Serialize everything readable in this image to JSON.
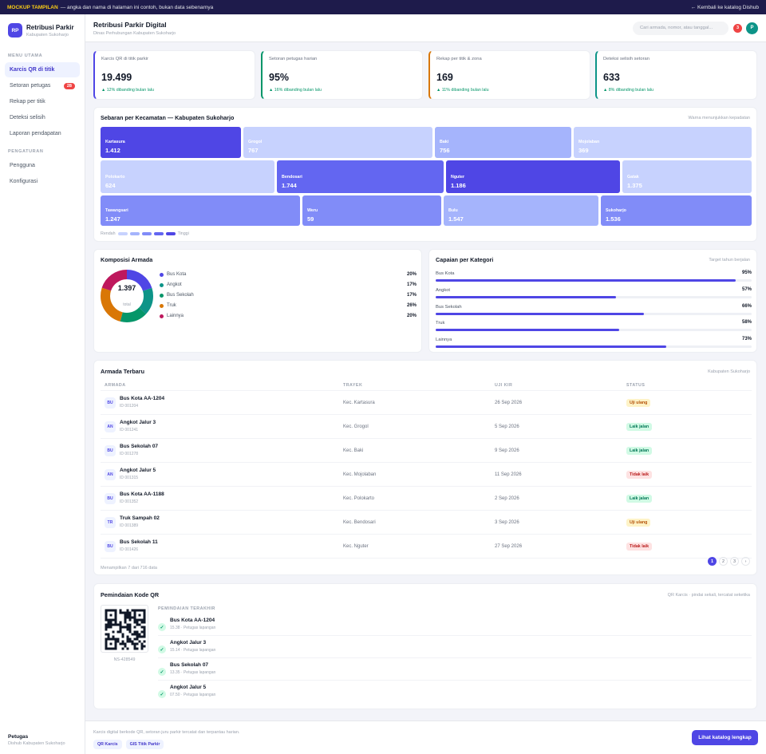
{
  "banner": {
    "tag": "MOCKUP TAMPILAN",
    "text": "— angka dan nama di halaman ini contoh, bukan data sebenarnya",
    "back_link": "← Kembali ke katalog Dishub"
  },
  "brand": {
    "logo": "RP",
    "name": "Retribusi Parkir",
    "subtitle": "Kabupaten Sukoharjo"
  },
  "nav": {
    "main_section": "MENU UTAMA",
    "main_items": [
      {
        "label": "Karcis QR di titik",
        "active": true
      },
      {
        "label": "Setoran petugas",
        "badge": "28"
      },
      {
        "label": "Rekap per titik"
      },
      {
        "label": "Deteksi selisih"
      },
      {
        "label": "Laporan pendapatan"
      }
    ],
    "settings_section": "PENGATURAN",
    "settings_items": [
      {
        "label": "Pengguna"
      },
      {
        "label": "Konfigurasi"
      }
    ]
  },
  "user": {
    "role": "Petugas",
    "org": "Dishub Kabupaten Sukoharjo"
  },
  "topbar": {
    "title": "Retribusi Parkir Digital",
    "subtitle": "Dinas Perhubungan Kabupaten Sukoharjo",
    "search_placeholder": "Cari armada, nomor, atau tanggal...",
    "notif_count": "3",
    "avatar": "P"
  },
  "kpis": [
    {
      "label": "Karcis QR di titik parkir",
      "value": "19.499",
      "change": "▲ 12% dibanding bulan lalu",
      "accent": "#4f46e5"
    },
    {
      "label": "Setoran petugas harian",
      "value": "95%",
      "change": "▲ 16% dibanding bulan lalu",
      "accent": "#059669"
    },
    {
      "label": "Rekap per titik & zona",
      "value": "169",
      "change": "▲ 11% dibanding bulan lalu",
      "accent": "#d97706"
    },
    {
      "label": "Deteksi selisih setoran",
      "value": "633",
      "change": "▲ 8% dibanding bulan lalu",
      "accent": "#0d9488"
    }
  ],
  "treemap": {
    "title": "Sebaran per Kecamatan — Kabupaten Sukoharjo",
    "note": "Warna menunjukkan kepadatan",
    "tiles": [
      {
        "name": "Kartasura",
        "value": "1.412",
        "color": "#4f46e5"
      },
      {
        "name": "Grogol",
        "value": "767",
        "color": "#c7d2fe"
      },
      {
        "name": "Baki",
        "value": "756",
        "color": "#a5b4fc"
      },
      {
        "name": "Mojolaban",
        "value": "369",
        "color": "#c7d2fe"
      },
      {
        "name": "Polokarto",
        "value": "624",
        "color": "#c7d2fe"
      },
      {
        "name": "Bendosari",
        "value": "1.744",
        "color": "#6366f1"
      },
      {
        "name": "Nguter",
        "value": "1.186",
        "color": "#4f46e5"
      },
      {
        "name": "Gatak",
        "value": "1.375",
        "color": "#c7d2fe"
      },
      {
        "name": "Tawangsari",
        "value": "1.247",
        "color": "#818cf8"
      },
      {
        "name": "Weru",
        "value": "59",
        "color": "#818cf8"
      },
      {
        "name": "Bulu",
        "value": "1.547",
        "color": "#a5b4fc"
      },
      {
        "name": "Sukoharjo",
        "value": "1.536",
        "color": "#818cf8"
      }
    ],
    "scale_low": "Rendah",
    "scale_high": "Tinggi",
    "scale_colors": [
      "#c7d2fe",
      "#a5b4fc",
      "#818cf8",
      "#6366f1",
      "#4f46e5"
    ]
  },
  "composition": {
    "title": "Komposisi Armada",
    "total": "1.397",
    "total_label": "total",
    "items": [
      {
        "label": "Bus Kota",
        "pct": "20%",
        "share": 20,
        "color": "#4f46e5"
      },
      {
        "label": "Angkot",
        "pct": "17%",
        "share": 17,
        "color": "#0d9488"
      },
      {
        "label": "Bus Sekolah",
        "pct": "17%",
        "share": 17,
        "color": "#059669"
      },
      {
        "label": "Truk",
        "pct": "26%",
        "share": 26,
        "color": "#d97706"
      },
      {
        "label": "Lainnya",
        "pct": "20%",
        "share": 20,
        "color": "#be185d"
      }
    ]
  },
  "achievement": {
    "title": "Capaian per Kategori",
    "note": "Target tahun berjalan",
    "items": [
      {
        "label": "Bus Kota",
        "pct": "95%",
        "value": 95
      },
      {
        "label": "Angkot",
        "pct": "57%",
        "value": 57
      },
      {
        "label": "Bus Sekolah",
        "pct": "66%",
        "value": 66
      },
      {
        "label": "Truk",
        "pct": "58%",
        "value": 58
      },
      {
        "label": "Lainnya",
        "pct": "73%",
        "value": 73
      }
    ]
  },
  "fleet": {
    "title": "Armada Terbaru",
    "note": "Kabupaten Sukoharjo",
    "columns": [
      "ARMADA",
      "TRAYEK",
      "UJI KIR",
      "STATUS"
    ],
    "rows": [
      {
        "code": "BU",
        "name": "Bus Kota AA-1204",
        "id": "ID 001204",
        "route": "Kec. Kartasura",
        "date": "26 Sep 2026",
        "status": "Uji ulang",
        "kind": "uji"
      },
      {
        "code": "AN",
        "name": "Angkot Jalur 3",
        "id": "ID 001241",
        "route": "Kec. Grogol",
        "date": "5 Sep 2026",
        "status": "Laik jalan",
        "kind": "laik"
      },
      {
        "code": "BU",
        "name": "Bus Sekolah 07",
        "id": "ID 001278",
        "route": "Kec. Baki",
        "date": "9 Sep 2026",
        "status": "Laik jalan",
        "kind": "laik"
      },
      {
        "code": "AN",
        "name": "Angkot Jalur 5",
        "id": "ID 001315",
        "route": "Kec. Mojolaban",
        "date": "11 Sep 2026",
        "status": "Tidak laik",
        "kind": "tidak"
      },
      {
        "code": "BU",
        "name": "Bus Kota AA-1188",
        "id": "ID 001352",
        "route": "Kec. Polokarto",
        "date": "2 Sep 2026",
        "status": "Laik jalan",
        "kind": "laik"
      },
      {
        "code": "TR",
        "name": "Truk Sampah 02",
        "id": "ID 001389",
        "route": "Kec. Bendosari",
        "date": "3 Sep 2026",
        "status": "Uji ulang",
        "kind": "uji"
      },
      {
        "code": "BU",
        "name": "Bus Sekolah 11",
        "id": "ID 001426",
        "route": "Kec. Nguter",
        "date": "27 Sep 2026",
        "status": "Tidak laik",
        "kind": "tidak"
      }
    ],
    "summary": "Menampilkan 7 dari 716 data",
    "pages": [
      "1",
      "2",
      "3",
      "›"
    ]
  },
  "scan": {
    "title": "Pemindaian Kode QR",
    "note": "QR Karcis · pindai sekali, tercatat seketika",
    "qr_code": "NS-428549",
    "recent_label": "PEMINDAIAN TERAKHIR",
    "items": [
      {
        "name": "Bus Kota AA-1204",
        "meta": "15.38 · Petugas lapangan"
      },
      {
        "name": "Angkot Jalur 3",
        "meta": "15.14 · Petugas lapangan"
      },
      {
        "name": "Bus Sekolah 07",
        "meta": "13.35 · Petugas lapangan"
      },
      {
        "name": "Angkot Jalur 5",
        "meta": "07.50 · Petugas lapangan"
      }
    ]
  },
  "footer": {
    "text": "Karcis digital berkode QR, setoran juru parkir tercatat dan terpantau harian.",
    "chips": [
      "QR Karcis",
      "GIS Titik Parkir"
    ],
    "cta": "Lihat katalog lengkap"
  }
}
